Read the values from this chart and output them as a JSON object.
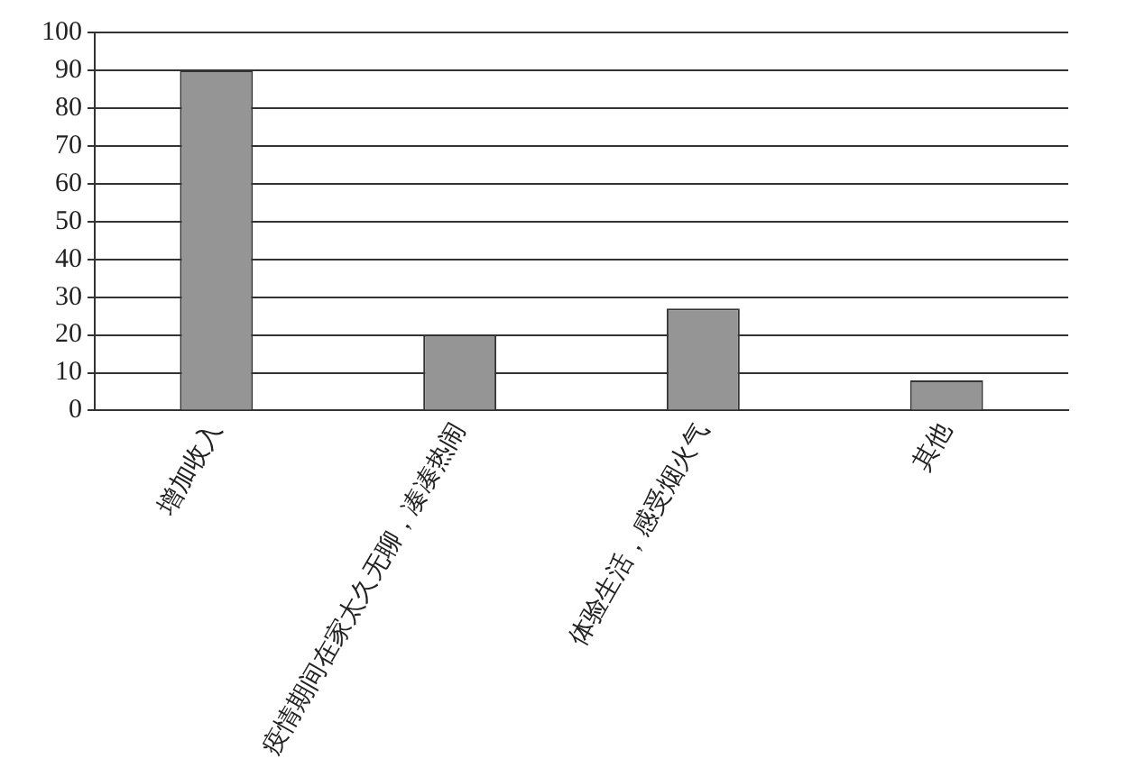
{
  "chart_data": {
    "type": "bar",
    "categories": [
      "增加收入",
      "疫情期间在家太久无聊，凑凑热闹",
      "体验生活，感受烟火气",
      "其他"
    ],
    "values": [
      90,
      20,
      27,
      8
    ],
    "color": "#959595",
    "ylim": [
      0,
      100
    ],
    "yticks": [
      0,
      10,
      20,
      30,
      40,
      50,
      60,
      70,
      80,
      90,
      100
    ],
    "grid": "y",
    "legend": false
  }
}
